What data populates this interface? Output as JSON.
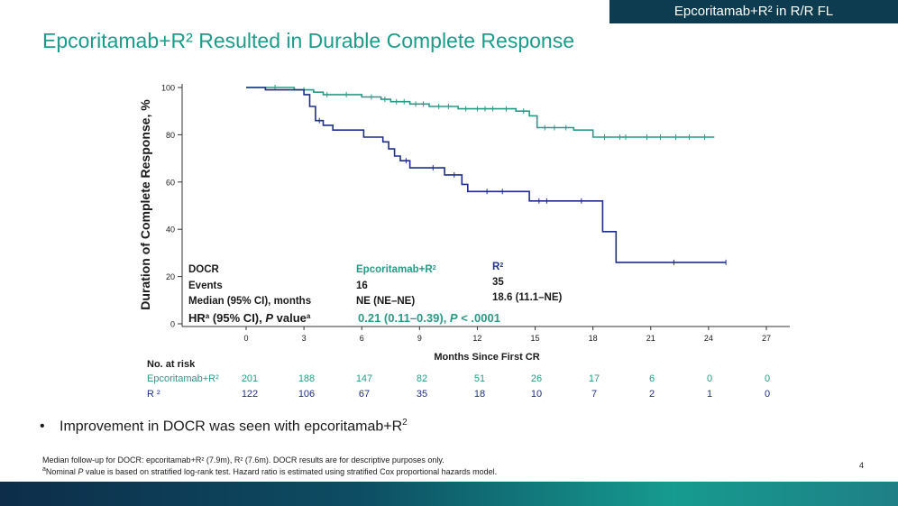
{
  "header_tag": "Epcoritamab+R² in R/R FL",
  "title": "Epcoritamab+R² Resulted in Durable Complete Response",
  "colors": {
    "epco": "#2a9a86",
    "r2": "#1f2e8a",
    "text": "#1a1a1a",
    "teal_title": "#1e9c8a"
  },
  "chart_data": {
    "type": "line",
    "subtype": "kaplan-meier",
    "ylabel": "Duration of Complete Response, %",
    "xlabel": "Months Since First CR",
    "xlim": [
      0,
      27
    ],
    "ylim": [
      0,
      100
    ],
    "xticks": [
      "0",
      "3",
      "6",
      "9",
      "12",
      "15",
      "18",
      "21",
      "24",
      "27"
    ],
    "yticks": [
      "0",
      "20",
      "40",
      "60",
      "80",
      "100"
    ],
    "series": [
      {
        "name": "Epcoritamab+R²",
        "color": "#2a9a86",
        "points": [
          [
            0,
            100
          ],
          [
            2.5,
            100
          ],
          [
            2.5,
            99
          ],
          [
            3.5,
            99
          ],
          [
            3.5,
            98
          ],
          [
            4,
            98
          ],
          [
            4,
            97
          ],
          [
            5,
            97
          ],
          [
            6,
            97
          ],
          [
            6,
            96
          ],
          [
            7,
            96
          ],
          [
            7,
            95
          ],
          [
            7.5,
            95
          ],
          [
            7.5,
            94
          ],
          [
            8.5,
            94
          ],
          [
            8.5,
            93
          ],
          [
            9.5,
            93
          ],
          [
            9.5,
            92
          ],
          [
            11,
            92
          ],
          [
            11,
            91
          ],
          [
            14,
            91
          ],
          [
            14,
            90
          ],
          [
            14.7,
            90
          ],
          [
            14.7,
            88
          ],
          [
            15.1,
            88
          ],
          [
            15.1,
            83
          ],
          [
            17,
            83
          ],
          [
            17,
            82
          ],
          [
            18,
            82
          ],
          [
            18,
            79
          ],
          [
            24.3,
            79
          ]
        ],
        "censor_x": [
          1.5,
          3,
          4.2,
          5.2,
          6.5,
          7.2,
          7.8,
          8.2,
          8.8,
          9.2,
          10,
          10.5,
          11.4,
          12,
          12.4,
          12.8,
          13.5,
          14.4,
          15.5,
          16,
          16.6,
          18.6,
          19.4,
          19.7,
          20.8,
          21.5,
          22.3,
          23,
          23.8
        ]
      },
      {
        "name": "R²",
        "color": "#1f2e8a",
        "points": [
          [
            0,
            100
          ],
          [
            1,
            100
          ],
          [
            1,
            99
          ],
          [
            3,
            99
          ],
          [
            3,
            97
          ],
          [
            3.3,
            97
          ],
          [
            3.3,
            92
          ],
          [
            3.6,
            92
          ],
          [
            3.6,
            86
          ],
          [
            4,
            86
          ],
          [
            4,
            84
          ],
          [
            4.5,
            84
          ],
          [
            4.5,
            82
          ],
          [
            6.1,
            82
          ],
          [
            6.1,
            79
          ],
          [
            7.1,
            79
          ],
          [
            7.1,
            77
          ],
          [
            7.4,
            77
          ],
          [
            7.4,
            74
          ],
          [
            7.7,
            74
          ],
          [
            7.7,
            71
          ],
          [
            8,
            71
          ],
          [
            8,
            69
          ],
          [
            8.5,
            69
          ],
          [
            8.5,
            66
          ],
          [
            10.3,
            66
          ],
          [
            10.3,
            63
          ],
          [
            11.2,
            63
          ],
          [
            11.2,
            59
          ],
          [
            11.5,
            59
          ],
          [
            11.5,
            56
          ],
          [
            14.7,
            56
          ],
          [
            14.7,
            52
          ],
          [
            18.5,
            52
          ],
          [
            18.5,
            39
          ],
          [
            19.2,
            39
          ],
          [
            19.2,
            26
          ],
          [
            24.9,
            26
          ]
        ],
        "censor_x": [
          3.8,
          8.3,
          9.7,
          10.8,
          12.5,
          13.3,
          15.2,
          15.6,
          17.4,
          22.2,
          24.9
        ]
      }
    ],
    "legend_table": {
      "row_labels": [
        "DOCR",
        "Events",
        "Median (95% CI), months"
      ],
      "hr_label_main": "HR",
      "hr_sup": "a",
      "hr_label_mid": " (95% CI), ",
      "hr_label_p": "P",
      "hr_label_value": " value",
      "hr_sup2": "a",
      "epco": {
        "name": "Epcoritamab+R",
        "sup": "2",
        "events": "16",
        "median": "NE (NE–NE)"
      },
      "r2": {
        "name": "R",
        "sup": "2",
        "events": "35",
        "median": "18.6 (11.1–NE)"
      },
      "hr_value_pre": "0.21 (0.11–0.39), ",
      "hr_value_p": "P",
      "hr_value_post": " < .0001"
    },
    "risk_table": {
      "title": "No. at risk",
      "rows": [
        {
          "label": "Epcoritamab+R²",
          "color": "#2a9a86",
          "values": [
            "201",
            "188",
            "147",
            "82",
            "51",
            "26",
            "17",
            "6",
            "0",
            "0"
          ]
        },
        {
          "label": "R ²",
          "color": "#1f2e8a",
          "values": [
            "122",
            "106",
            "67",
            "35",
            "18",
            "10",
            "7",
            "2",
            "1",
            "0"
          ]
        }
      ]
    }
  },
  "bullet": "Improvement in DOCR was seen with epcoritamab+R",
  "bullet_sup": "2",
  "bullet_dot": "•",
  "footnote1": "Median follow-up for DOCR: epcoritamab+R² (7.9m), R² (7.6m). DOCR results are for descriptive purposes only.",
  "footnote2_pre": "Nominal ",
  "footnote2_p": "P",
  "footnote2_post": " value is based on stratified log-rank test. Hazard ratio is estimated using stratified Cox proportional hazards model.",
  "footnote2_sup": "a",
  "page_number": "4"
}
